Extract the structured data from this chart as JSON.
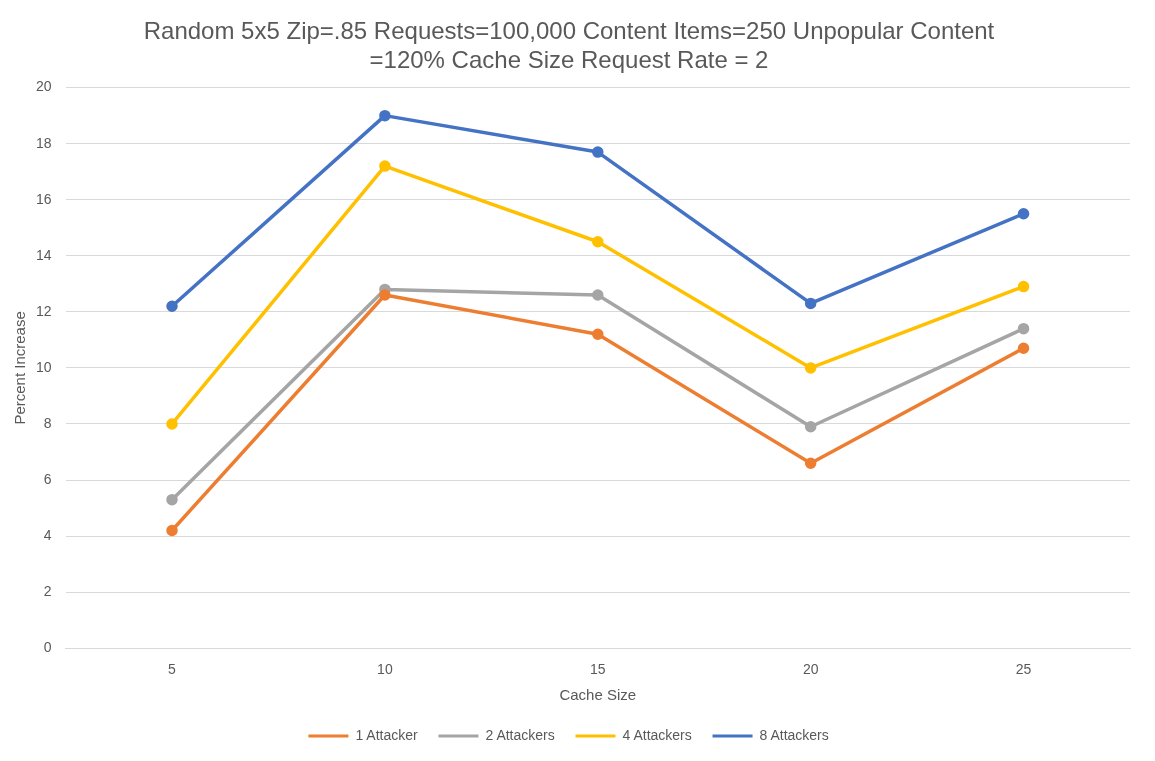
{
  "chart_data": {
    "type": "line",
    "title": "Random 5x5 Zip=.85 Requests=100,000 Content Items=250 Unpopular Content =120% Cache Size Request Rate = 2",
    "xlabel": "Cache Size",
    "ylabel": "Percent Increase",
    "categories": [
      "5",
      "10",
      "15",
      "20",
      "25"
    ],
    "series": [
      {
        "name": "1 Attacker",
        "color": "#ed7d31",
        "values": [
          4.2,
          12.6,
          11.2,
          6.6,
          10.7
        ]
      },
      {
        "name": "2 Attackers",
        "color": "#a5a5a5",
        "values": [
          5.3,
          12.8,
          12.6,
          7.9,
          11.4
        ]
      },
      {
        "name": "4 Attackers",
        "color": "#ffc000",
        "values": [
          8.0,
          17.2,
          14.5,
          10.0,
          12.9
        ]
      },
      {
        "name": "8 Attackers",
        "color": "#4472c4",
        "values": [
          12.2,
          19.0,
          17.7,
          12.3,
          15.5
        ]
      }
    ],
    "ylim": [
      0,
      20
    ],
    "yticks": [
      0,
      2,
      4,
      6,
      8,
      10,
      12,
      14,
      16,
      18,
      20
    ],
    "grid": "y",
    "legend": "bottom",
    "marker": "circle",
    "line_style": "solid"
  }
}
